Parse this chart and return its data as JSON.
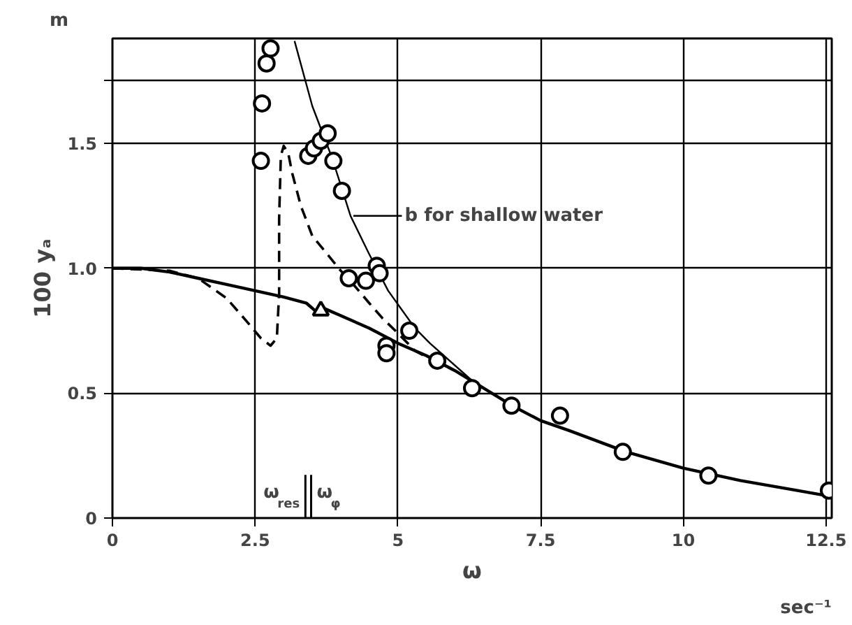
{
  "chart_data": {
    "type": "line",
    "xlabel": "ω",
    "ylabel": "100 yₐ",
    "xlim": [
      0,
      12.6
    ],
    "ylim": [
      0,
      1.92
    ],
    "xticks": [
      0,
      2.5,
      5,
      7.5,
      10,
      12.5
    ],
    "yticks": [
      0,
      0.5,
      {
        "value": 1,
        "label": "1.0"
      },
      1.5,
      {
        "value": 1.75,
        "label": null
      }
    ],
    "ref_lines": [
      {
        "axis": "x",
        "value": 3.38,
        "label": "ω$_{res}$"
      },
      {
        "axis": "x",
        "value": 3.48,
        "label": "ω$_{φ}$"
      }
    ],
    "grid": true,
    "marker": "none",
    "series": [
      {
        "color": "#000000",
        "line_style": "solid",
        "x": [
          0,
          0.5,
          1,
          1.5,
          2,
          2.5,
          3,
          3.4,
          3.55,
          3.7,
          4,
          4.5,
          5,
          5.5,
          6,
          6.5,
          7,
          7.5,
          8,
          9,
          10,
          11,
          12,
          12.5
        ],
        "values": [
          1.0,
          1.0,
          0.985,
          0.96,
          0.935,
          0.91,
          0.885,
          0.86,
          0.83,
          0.84,
          0.81,
          0.76,
          0.7,
          0.65,
          0.59,
          0.52,
          0.45,
          0.39,
          0.35,
          0.265,
          0.2,
          0.15,
          0.11,
          0.09
        ]
      },
      {
        "color": "#000000",
        "line_style": "dashed",
        "x": [
          0,
          1,
          1.5,
          2,
          2.38,
          2.6,
          2.77,
          2.88,
          2.92,
          2.92,
          2.95,
          3.0,
          3.08,
          3.15,
          3.3,
          3.5,
          3.75,
          4.0,
          4.24,
          4.5,
          4.73,
          5.0,
          5.3,
          5.7
        ],
        "values": [
          1.0,
          0.99,
          0.96,
          0.88,
          0.78,
          0.72,
          0.69,
          0.72,
          0.9,
          1.2,
          1.45,
          1.49,
          1.46,
          1.38,
          1.25,
          1.13,
          1.06,
          0.99,
          0.93,
          0.86,
          0.8,
          0.74,
          0.67,
          0.62
        ]
      },
      {
        "color": "#000000",
        "line_style": "solid",
        "x": [
          3.19,
          3.5,
          3.85,
          4.17,
          4.49,
          4.83,
          5.3,
          5.56,
          6.3,
          6.86,
          7.0
        ],
        "values": [
          1.91,
          1.65,
          1.44,
          1.21,
          1.06,
          0.91,
          0.76,
          0.7,
          0.55,
          0.47,
          0.45
        ]
      },
      {
        "type": "scatter",
        "marker": "circle",
        "color": "#000000",
        "x": [
          2.77,
          2.7,
          2.62,
          2.6,
          3.43,
          3.53,
          3.65,
          3.77,
          3.87,
          4.02,
          4.14,
          4.44,
          4.63,
          4.68,
          4.8,
          4.8,
          5.2,
          5.69,
          6.3,
          6.99,
          7.84,
          8.94,
          10.44,
          12.55
        ],
        "values": [
          1.88,
          1.82,
          1.66,
          1.43,
          1.45,
          1.48,
          1.51,
          1.54,
          1.43,
          1.31,
          0.96,
          0.95,
          1.01,
          0.98,
          0.69,
          0.66,
          0.75,
          0.63,
          0.52,
          0.45,
          0.41,
          0.265,
          0.17,
          0.11
        ]
      },
      {
        "type": "scatter",
        "marker": "triangle",
        "color": "#000000",
        "x": [
          3.65
        ],
        "values": [
          0.83
        ]
      }
    ],
    "annotations": [
      {
        "text": "b for shallow water",
        "x": 4.17,
        "y": 1.21
      },
      "m",
      "sec⁻¹"
    ]
  }
}
